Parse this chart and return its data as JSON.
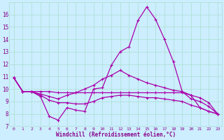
{
  "xlabel": "Windchill (Refroidissement éolien,°C)",
  "bg_color": "#cceeff",
  "line_color": "#aa00aa",
  "grid_color": "#aaddcc",
  "xlim": [
    -0.5,
    23.5
  ],
  "ylim": [
    7,
    17
  ],
  "yticks": [
    7,
    8,
    9,
    10,
    11,
    12,
    13,
    14,
    15,
    16
  ],
  "xticks": [
    0,
    1,
    2,
    3,
    4,
    5,
    6,
    7,
    8,
    9,
    10,
    11,
    12,
    13,
    14,
    15,
    16,
    17,
    18,
    19,
    20,
    21,
    22,
    23
  ],
  "series": [
    [
      10.9,
      9.8,
      9.8,
      9.4,
      7.8,
      7.5,
      8.5,
      8.3,
      8.2,
      10.0,
      10.1,
      11.9,
      13.0,
      13.4,
      15.5,
      16.6,
      15.6,
      14.0,
      12.2,
      9.8,
      9.5,
      8.5,
      8.2,
      8.0
    ],
    [
      10.9,
      9.8,
      9.8,
      9.6,
      9.4,
      9.2,
      9.5,
      9.7,
      10.0,
      10.3,
      10.8,
      11.1,
      11.5,
      11.1,
      10.8,
      10.5,
      10.3,
      10.1,
      9.9,
      9.8,
      9.2,
      9.0,
      8.6,
      8.0
    ],
    [
      10.9,
      9.8,
      9.8,
      9.8,
      9.8,
      9.7,
      9.7,
      9.7,
      9.7,
      9.7,
      9.7,
      9.7,
      9.7,
      9.7,
      9.7,
      9.7,
      9.7,
      9.7,
      9.7,
      9.7,
      9.5,
      9.3,
      8.9,
      8.0
    ],
    [
      10.9,
      9.8,
      9.8,
      9.5,
      9.1,
      8.9,
      8.9,
      8.8,
      8.8,
      9.0,
      9.3,
      9.4,
      9.5,
      9.5,
      9.4,
      9.3,
      9.3,
      9.2,
      9.1,
      9.0,
      8.7,
      8.5,
      8.2,
      8.0
    ]
  ]
}
